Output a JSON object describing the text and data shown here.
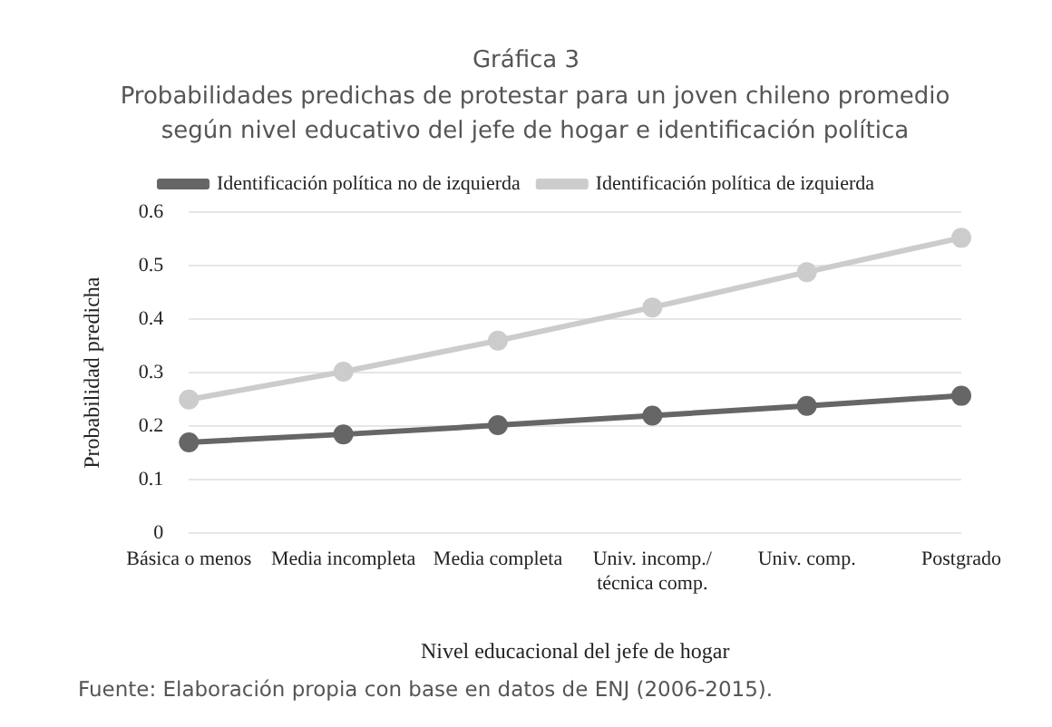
{
  "chart_data": {
    "type": "line",
    "title": "Gráfica 3",
    "subtitle": "Probabilidades predichas de protestar para un joven chileno promedio según nivel educativo del jefe de hogar e identificación política",
    "xlabel": "Nivel educacional del jefe de hogar",
    "ylabel": "Probabilidad predicha",
    "categories": [
      "Básica o menos",
      "Media incompleta",
      "Media completa",
      "Univ. incomp./ técnica comp.",
      "Univ. comp.",
      "Postgrado"
    ],
    "series": [
      {
        "name": "Identificación política no de izquierda",
        "color": "#666666",
        "values": [
          0.17,
          0.185,
          0.202,
          0.22,
          0.238,
          0.257
        ]
      },
      {
        "name": "Identificación política de izquierda",
        "color": "#cccccc",
        "values": [
          0.25,
          0.302,
          0.36,
          0.422,
          0.488,
          0.552
        ]
      }
    ],
    "ylim": [
      0,
      0.6
    ],
    "yticks": [
      0,
      0.1,
      0.2,
      0.3,
      0.4,
      0.5,
      0.6
    ],
    "grid": "y",
    "legend": "top",
    "marker": "circle",
    "line_style": "solid",
    "annotations": [
      "Fuente: Elaboración propia con base en datos de ENJ (2006-2015)."
    ]
  }
}
